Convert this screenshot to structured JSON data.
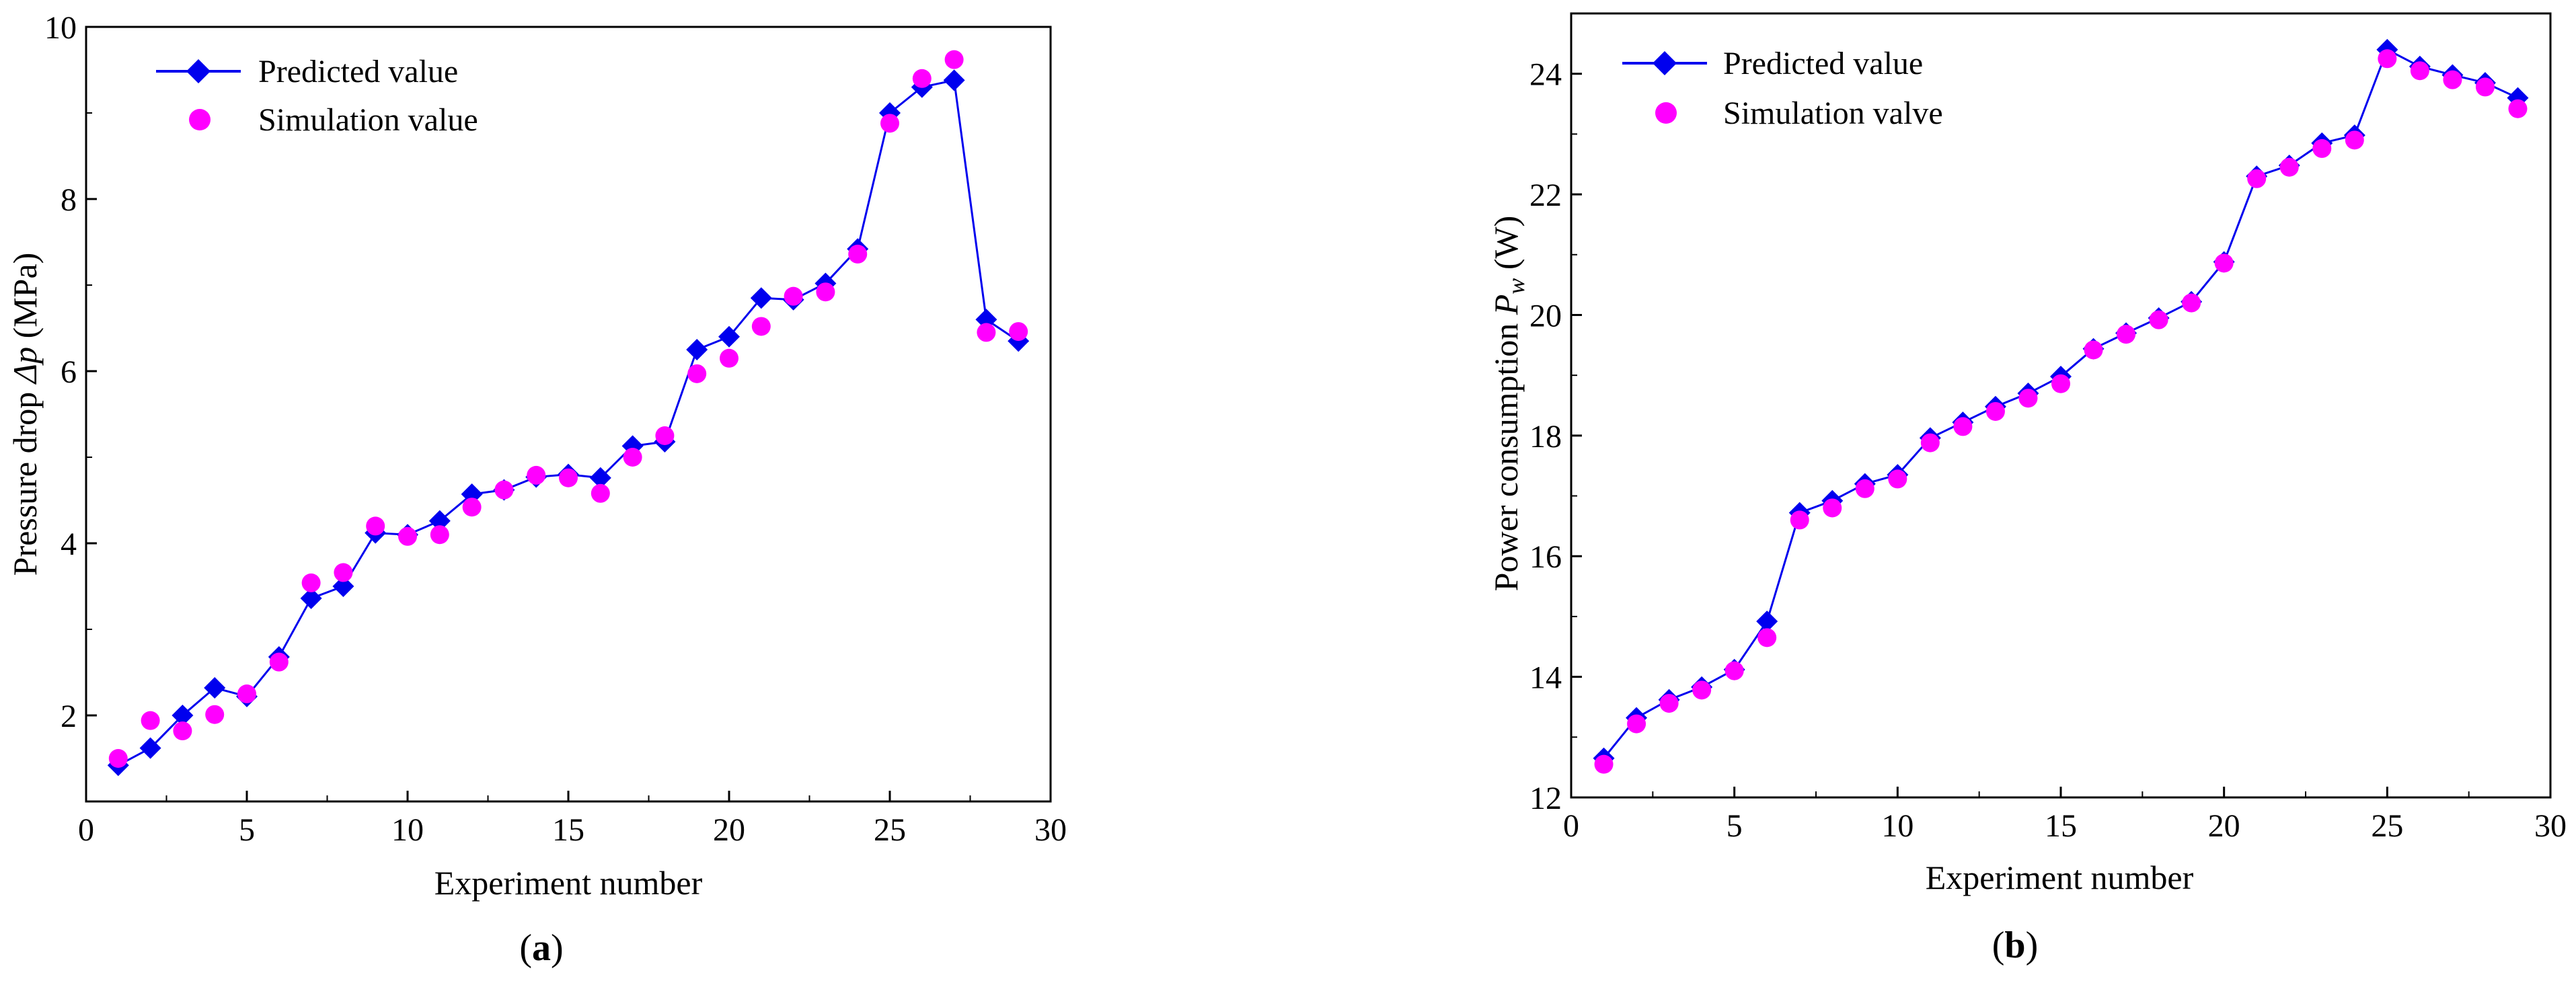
{
  "chart_data": [
    {
      "type": "line",
      "panel_label": "a",
      "title": "",
      "xlabel": "Experiment number",
      "ylabel": "Pressure drop Δp (MPa)",
      "ylabel_parts": {
        "before": "Pressure drop ",
        "symbol": "Δp",
        "after": " (MPa)"
      },
      "xlim": [
        0,
        30
      ],
      "ylim": [
        1,
        10
      ],
      "xticks": [
        0,
        5,
        10,
        15,
        20,
        25,
        30
      ],
      "yticks": [
        2,
        4,
        6,
        8,
        10
      ],
      "x": [
        1,
        2,
        3,
        4,
        5,
        6,
        7,
        8,
        9,
        10,
        11,
        12,
        13,
        14,
        15,
        16,
        17,
        18,
        19,
        20,
        21,
        22,
        23,
        24,
        25,
        26,
        27,
        28,
        29
      ],
      "series": [
        {
          "name": "Predicted value",
          "style": "line-diamond",
          "color": "#0000ee",
          "values": [
            1.42,
            1.62,
            2.0,
            2.32,
            2.22,
            2.68,
            3.36,
            3.5,
            4.12,
            4.1,
            4.26,
            4.57,
            4.62,
            4.77,
            4.8,
            4.76,
            5.13,
            5.18,
            6.25,
            6.4,
            6.85,
            6.83,
            7.02,
            7.42,
            9.0,
            9.3,
            9.38,
            6.6,
            6.35
          ]
        },
        {
          "name": "Simulation value",
          "style": "marker-circle",
          "color": "#ff00ff",
          "values": [
            1.5,
            1.94,
            1.82,
            2.01,
            2.25,
            2.62,
            3.54,
            3.66,
            4.2,
            4.08,
            4.1,
            4.42,
            4.62,
            4.79,
            4.76,
            4.58,
            5.0,
            5.25,
            5.97,
            6.15,
            6.52,
            6.87,
            6.92,
            7.36,
            8.88,
            9.4,
            9.62,
            6.45,
            6.46
          ]
        }
      ],
      "legend_position": "top-left"
    },
    {
      "type": "line",
      "panel_label": "b",
      "title": "",
      "xlabel": "Experiment number",
      "ylabel": "Power consumption Pw (W)",
      "ylabel_parts": {
        "before": "Power consumption ",
        "symbol": "P",
        "subscript": "w",
        "after": " (W)"
      },
      "xlim": [
        0,
        30
      ],
      "ylim": [
        12,
        25
      ],
      "xticks": [
        0,
        5,
        10,
        15,
        20,
        25,
        30
      ],
      "yticks": [
        12,
        14,
        16,
        18,
        20,
        22,
        24
      ],
      "x": [
        1,
        2,
        3,
        4,
        5,
        6,
        7,
        8,
        9,
        10,
        11,
        12,
        13,
        14,
        15,
        16,
        17,
        18,
        19,
        20,
        21,
        22,
        23,
        24,
        25,
        26,
        27,
        28,
        29
      ],
      "series": [
        {
          "name": "Predicted value",
          "style": "line-diamond",
          "color": "#0000ee",
          "values": [
            12.65,
            13.32,
            13.62,
            13.83,
            14.12,
            14.92,
            16.72,
            16.92,
            17.2,
            17.35,
            17.96,
            18.22,
            18.48,
            18.7,
            18.98,
            19.44,
            19.7,
            19.95,
            20.22,
            20.88,
            22.3,
            22.48,
            22.85,
            22.98,
            24.4,
            24.12,
            23.98,
            23.85,
            23.6
          ]
        },
        {
          "name": "Simulation valve",
          "style": "marker-circle",
          "color": "#ff00ff",
          "values": [
            12.55,
            13.22,
            13.56,
            13.78,
            14.1,
            14.65,
            16.6,
            16.8,
            17.12,
            17.28,
            17.88,
            18.15,
            18.4,
            18.62,
            18.86,
            19.42,
            19.68,
            19.92,
            20.2,
            20.86,
            22.26,
            22.45,
            22.76,
            22.9,
            24.25,
            24.05,
            23.9,
            23.78,
            23.42
          ]
        }
      ],
      "legend_position": "top-left"
    }
  ]
}
